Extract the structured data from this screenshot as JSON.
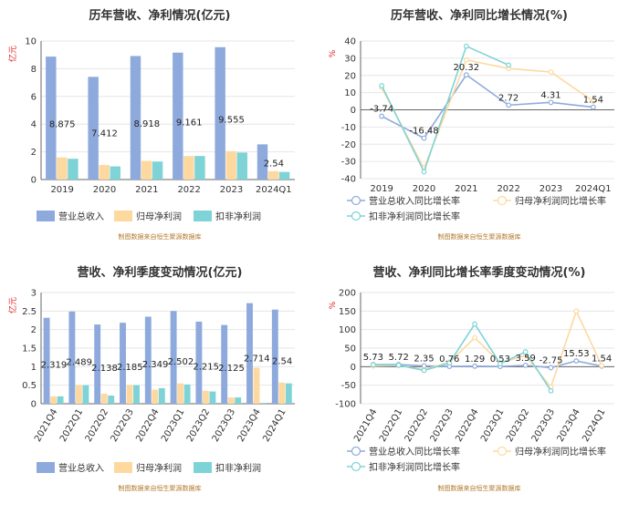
{
  "colors": {
    "revenue": "#8eaadc",
    "net_profit": "#fdd9a0",
    "deducted_profit": "#7ed3d6",
    "grid": "#e6e6e6",
    "axis": "#666666"
  },
  "legend": {
    "revenue": "营业总收入",
    "net_profit": "归母净利润",
    "deducted_profit": "扣非净利润",
    "revenue_growth": "营业总收入同比增长率",
    "net_profit_growth": "归母净利润同比增长率",
    "deducted_growth": "扣非净利润同比增长率"
  },
  "source": "制图数据来自恒生聚源数据库",
  "chart_data": [
    {
      "type": "bar",
      "title": "历年营收、净利情况(亿元)",
      "ylabel": "亿元",
      "ylim": [
        0,
        10
      ],
      "yticks": [
        "0",
        "2",
        "4",
        "6",
        "8",
        "10"
      ],
      "categories": [
        "2019",
        "2020",
        "2021",
        "2022",
        "2023",
        "2024Q1"
      ],
      "labels": [
        "8.875",
        "7.412",
        "8.918",
        "9.161",
        "9.555",
        "2.54"
      ],
      "series": [
        {
          "name": "营业总收入",
          "values": [
            8.875,
            7.412,
            8.918,
            9.161,
            9.555,
            2.54
          ]
        },
        {
          "name": "归母净利润",
          "values": [
            1.6,
            1.05,
            1.35,
            1.7,
            2.05,
            0.6
          ]
        },
        {
          "name": "扣非净利润",
          "values": [
            1.5,
            0.95,
            1.3,
            1.7,
            1.95,
            0.55
          ]
        }
      ],
      "legend_position": "bottom"
    },
    {
      "type": "line",
      "title": "历年营收、净利同比增长情况(%)",
      "ylabel": "%",
      "ylim": [
        -40,
        40
      ],
      "yticks": [
        "-40",
        "-30",
        "-20",
        "-10",
        "0",
        "10",
        "20",
        "30",
        "40"
      ],
      "categories": [
        "2019",
        "2020",
        "2021",
        "2022",
        "2023",
        "2024Q1"
      ],
      "labels": [
        "-3.74",
        "-16.48",
        "20.32",
        "2.72",
        "4.31",
        "1.54"
      ],
      "series": [
        {
          "name": "营业总收入同比增长率",
          "values": [
            -3.74,
            -16.48,
            20.32,
            2.72,
            4.31,
            1.54
          ]
        },
        {
          "name": "归母净利润同比增长率",
          "values": [
            13,
            -34,
            29,
            24,
            22,
            5
          ]
        },
        {
          "name": "扣非净利润同比增长率",
          "values": [
            14,
            -36,
            37,
            26,
            null,
            null
          ]
        }
      ],
      "legend_position": "bottom"
    },
    {
      "type": "bar",
      "title": "营收、净利季度变动情况(亿元)",
      "ylabel": "亿元",
      "ylim": [
        0,
        3
      ],
      "yticks": [
        "0",
        "0.5",
        "1",
        "1.5",
        "2",
        "2.5",
        "3"
      ],
      "categories": [
        "2021Q4",
        "2022Q1",
        "2022Q2",
        "2022Q3",
        "2022Q4",
        "2023Q1",
        "2023Q2",
        "2023Q3",
        "2023Q4",
        "2024Q1"
      ],
      "labels": [
        "2.319",
        "2.489",
        "2.138",
        "2.185",
        "2.349",
        "2.502",
        "2.215",
        "2.125",
        "2.714",
        "2.54"
      ],
      "series": [
        {
          "name": "营业总收入",
          "values": [
            2.319,
            2.489,
            2.138,
            2.185,
            2.349,
            2.502,
            2.215,
            2.125,
            2.714,
            2.54
          ]
        },
        {
          "name": "归母净利润",
          "values": [
            0.2,
            0.5,
            0.27,
            0.5,
            0.38,
            0.55,
            0.35,
            0.17,
            0.97,
            0.57
          ]
        },
        {
          "name": "扣非净利润",
          "values": [
            0.2,
            0.5,
            0.22,
            0.5,
            0.42,
            0.52,
            0.33,
            0.17,
            0.02,
            0.55
          ]
        }
      ],
      "legend_position": "bottom"
    },
    {
      "type": "line",
      "title": "营收、净利同比增长率季度变动情况(%)",
      "ylabel": "%",
      "ylim": [
        -100,
        200
      ],
      "yticks": [
        "-100",
        "-50",
        "0",
        "50",
        "100",
        "150",
        "200"
      ],
      "categories": [
        "2021Q4",
        "2022Q1",
        "2022Q2",
        "2022Q3",
        "2022Q4",
        "2023Q1",
        "2023Q2",
        "2023Q3",
        "2023Q4",
        "2024Q1"
      ],
      "labels": [
        "5.73",
        "5.72",
        "2.35",
        "0.76",
        "1.29",
        "0.53",
        "3.59",
        "-2.75",
        "15.53",
        "1.54"
      ],
      "series": [
        {
          "name": "营业总收入同比增长率",
          "values": [
            5.73,
            5.72,
            2.35,
            0.76,
            1.29,
            0.53,
            3.59,
            -2.75,
            15.53,
            1.54
          ]
        },
        {
          "name": "归母净利润同比增长率",
          "values": [
            2,
            3,
            -8,
            12,
            78,
            10,
            30,
            -55,
            150,
            3
          ]
        },
        {
          "name": "扣非净利润同比增长率",
          "values": [
            5,
            4,
            -10,
            10,
            115,
            8,
            40,
            -65,
            null,
            null
          ]
        }
      ],
      "legend_position": "bottom"
    }
  ]
}
